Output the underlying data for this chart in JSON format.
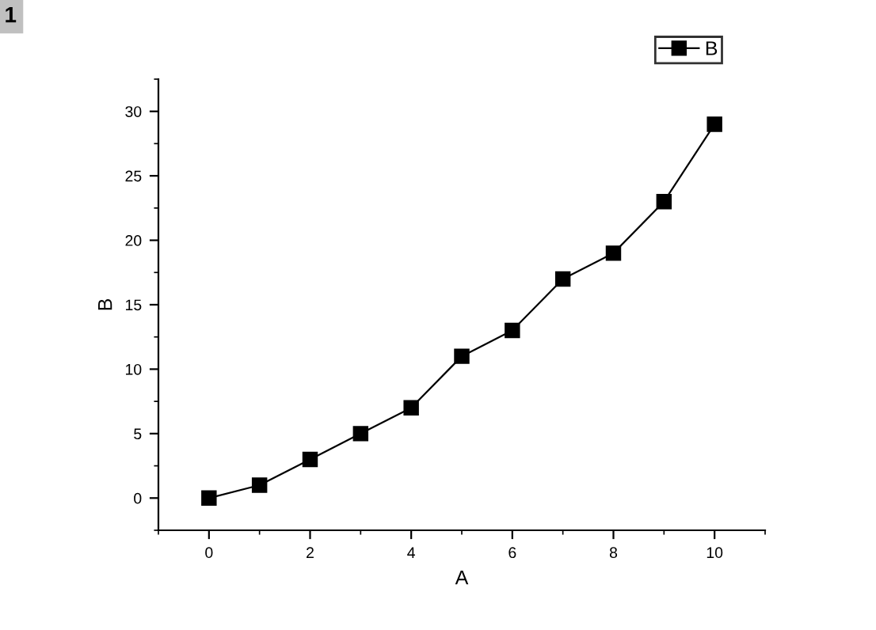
{
  "chart_data": {
    "type": "line",
    "xlabel": "A",
    "ylabel": "B",
    "x": [
      0,
      1,
      2,
      3,
      4,
      5,
      6,
      7,
      8,
      9,
      10
    ],
    "series": [
      {
        "name": "B",
        "color": "#000000",
        "values": [
          0,
          1,
          3,
          5,
          7,
          11,
          13,
          17,
          19,
          23,
          29
        ]
      }
    ],
    "xlim": [
      -1,
      11
    ],
    "xticks": [
      0,
      2,
      4,
      6,
      8,
      10
    ],
    "ylim": [
      -2.5,
      32.5
    ],
    "yticks": [
      0,
      5,
      10,
      15,
      20,
      25,
      30
    ],
    "marker": "square",
    "line_style": "solid",
    "legend": "top right",
    "grid": false,
    "annotations": [
      "1"
    ]
  }
}
